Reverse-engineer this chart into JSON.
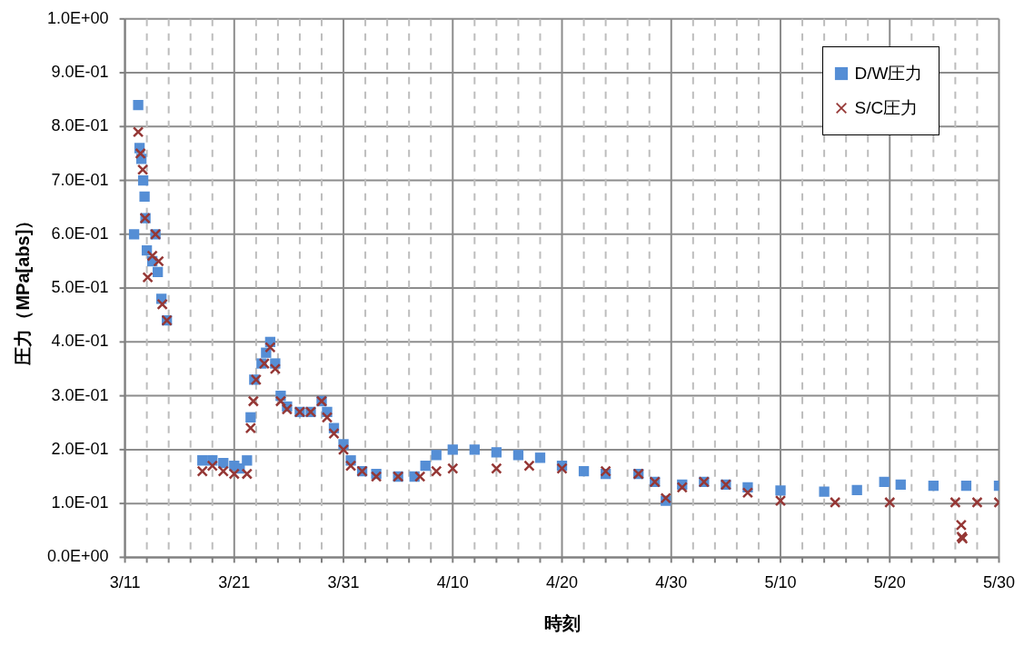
{
  "chart_data": {
    "type": "scatter",
    "xlabel": "時刻",
    "ylabel": "圧力（MPa[abs]）",
    "legend": "top right",
    "grid": true,
    "xlim": [
      "--03-11",
      "--05-30"
    ],
    "xticks": [
      {
        "value": "--03-11",
        "label": "3/11"
      },
      {
        "value": "--03-13",
        "label": null
      },
      {
        "value": "--03-15",
        "label": null
      },
      {
        "value": "--03-17",
        "label": null
      },
      {
        "value": "--03-19",
        "label": null
      },
      {
        "value": "--03-21",
        "label": "3/21"
      },
      {
        "value": "--03-23",
        "label": null
      },
      {
        "value": "--03-25",
        "label": null
      },
      {
        "value": "--03-27",
        "label": null
      },
      {
        "value": "--03-29",
        "label": null
      },
      {
        "value": "--03-31",
        "label": "3/31"
      },
      {
        "value": "--04-02",
        "label": null
      },
      {
        "value": "--04-04",
        "label": null
      },
      {
        "value": "--04-06",
        "label": null
      },
      {
        "value": "--04-08",
        "label": null
      },
      {
        "value": "--04-10",
        "label": "4/10"
      },
      {
        "value": "--04-12",
        "label": null
      },
      {
        "value": "--04-14",
        "label": null
      },
      {
        "value": "--04-16",
        "label": null
      },
      {
        "value": "--04-18",
        "label": null
      },
      {
        "value": "--04-20",
        "label": "4/20"
      },
      {
        "value": "--04-22",
        "label": null
      },
      {
        "value": "--04-24",
        "label": null
      },
      {
        "value": "--04-26",
        "label": null
      },
      {
        "value": "--04-28",
        "label": null
      },
      {
        "value": "--04-30",
        "label": "4/30"
      },
      {
        "value": "--05-02",
        "label": null
      },
      {
        "value": "--05-04",
        "label": null
      },
      {
        "value": "--05-06",
        "label": null
      },
      {
        "value": "--05-08",
        "label": null
      },
      {
        "value": "--05-10",
        "label": "5/10"
      },
      {
        "value": "--05-12",
        "label": null
      },
      {
        "value": "--05-14",
        "label": null
      },
      {
        "value": "--05-16",
        "label": null
      },
      {
        "value": "--05-18",
        "label": null
      },
      {
        "value": "--05-20",
        "label": "5/20"
      },
      {
        "value": "--05-22",
        "label": null
      },
      {
        "value": "--05-24",
        "label": null
      },
      {
        "value": "--05-26",
        "label": null
      },
      {
        "value": "--05-28",
        "label": null
      },
      {
        "value": "--05-30",
        "label": "5/30"
      }
    ],
    "ylim": [
      0,
      1
    ],
    "yticks": [
      {
        "value": 0,
        "label": "0.0E+00"
      },
      {
        "value": 0.1,
        "label": "1.0E-01"
      },
      {
        "value": 0.2,
        "label": "2.0E-01"
      },
      {
        "value": 0.3,
        "label": "3.0E-01"
      },
      {
        "value": 0.4,
        "label": "4.0E-01"
      },
      {
        "value": 0.5,
        "label": "5.0E-01"
      },
      {
        "value": 0.6,
        "label": "6.0E-01"
      },
      {
        "value": 0.7,
        "label": "7.0E-01"
      },
      {
        "value": 0.8,
        "label": "8.0E-01"
      },
      {
        "value": 0.9,
        "label": "9.0E-01"
      },
      {
        "value": 1,
        "label": "1.0E+00"
      }
    ],
    "series": [
      {
        "name": "D/W圧力",
        "color": "#558ed5",
        "marker": "square",
        "x": [
          "--03-11T20:00",
          "--03-12T05:00",
          "--03-12T08:00",
          "--03-12T12:00",
          "--03-12T16:00",
          "--03-12T19:00",
          "--03-12T21:00",
          "--03-13T00:00",
          "--03-13T12:00",
          "--03-13T19:00",
          "--03-14T00:00",
          "--03-14T08:00",
          "--03-14T20:00",
          "--03-18T02:00",
          "--03-19T00:00",
          "--03-20T00:00",
          "--03-21T00:00",
          "--03-21T12:00",
          "--03-22T04:00",
          "--03-22T12:00",
          "--03-22T20:00",
          "--03-23T12:00",
          "--03-23T22:00",
          "--03-24T07:00",
          "--03-24T18:00",
          "--03-25T06:00",
          "--03-25T20:00",
          "--03-27T00:00",
          "--03-28T00:00",
          "--03-29T00:00",
          "--03-29T12:00",
          "--03-30T03:00",
          "--03-31T00:00",
          "--03-31T16:00",
          "--04-01T17:00",
          "--04-03T00:00",
          "--04-05T00:00",
          "--04-06T12:00",
          "--04-07T12:00",
          "--04-08T12:00",
          "--04-10T00:00",
          "--04-12T00:00",
          "--04-14T00:00",
          "--04-16T00:00",
          "--04-18T00:00",
          "--04-20T00:00",
          "--04-22T00:00",
          "--04-24T00:00",
          "--04-27T00:00",
          "--04-28T12:00",
          "--04-29T12:00",
          "--05-01T00:00",
          "--05-03T00:00",
          "--05-05T00:00",
          "--05-07T00:00",
          "--05-10T00:00",
          "--05-14T00:00",
          "--05-17T00:00",
          "--05-19T12:00",
          "--05-21T00:00",
          "--05-24T00:00",
          "--05-27T00:00",
          "--05-30T00:00"
        ],
        "values": [
          0.6,
          0.84,
          0.76,
          0.74,
          0.7,
          0.67,
          0.63,
          0.57,
          0.55,
          0.6,
          0.53,
          0.48,
          0.44,
          0.18,
          0.18,
          0.175,
          0.17,
          0.165,
          0.18,
          0.26,
          0.33,
          0.36,
          0.38,
          0.4,
          0.36,
          0.3,
          0.28,
          0.27,
          0.27,
          0.29,
          0.27,
          0.24,
          0.21,
          0.18,
          0.16,
          0.155,
          0.15,
          0.15,
          0.17,
          0.19,
          0.2,
          0.2,
          0.195,
          0.19,
          0.185,
          0.17,
          0.16,
          0.155,
          0.155,
          0.14,
          0.105,
          0.135,
          0.14,
          0.135,
          0.13,
          0.124,
          0.122,
          0.125,
          0.14,
          0.135,
          0.133,
          0.133,
          0.133
        ]
      },
      {
        "name": "S/C圧力",
        "color": "#953735",
        "marker": "cross",
        "x": [
          "--03-12T05:00",
          "--03-12T10:00",
          "--03-12T15:00",
          "--03-12T20:00",
          "--03-13T02:00",
          "--03-13T12:00",
          "--03-13T19:00",
          "--03-14T02:00",
          "--03-14T10:00",
          "--03-14T20:00",
          "--03-18T02:00",
          "--03-19T00:00",
          "--03-20T00:00",
          "--03-21T00:00",
          "--03-22T04:00",
          "--03-22T12:00",
          "--03-22T18:00",
          "--03-23T00:00",
          "--03-23T18:00",
          "--03-24T07:00",
          "--03-24T18:00",
          "--03-25T06:00",
          "--03-25T20:00",
          "--03-27T00:00",
          "--03-28T00:00",
          "--03-29T00:00",
          "--03-29T12:00",
          "--03-30T03:00",
          "--03-31T00:00",
          "--03-31T16:00",
          "--04-01T17:00",
          "--04-03T00:00",
          "--04-05T00:00",
          "--04-07T00:00",
          "--04-08T12:00",
          "--04-10T00:00",
          "--04-14T00:00",
          "--04-17T00:00",
          "--04-20T00:00",
          "--04-24T00:00",
          "--04-27T00:00",
          "--04-28T12:00",
          "--04-29T12:00",
          "--05-01T00:00",
          "--05-03T00:00",
          "--05-05T00:00",
          "--05-07T00:00",
          "--05-10T00:00",
          "--05-15T00:00",
          "--05-20T00:00",
          "--05-26T00:00",
          "--05-26T13:00",
          "--05-26T14:00",
          "--05-26T16:00",
          "--05-28T00:00",
          "--05-30T00:00"
        ],
        "values": [
          0.79,
          0.75,
          0.72,
          0.63,
          0.52,
          0.56,
          0.6,
          0.55,
          0.47,
          0.44,
          0.16,
          0.17,
          0.16,
          0.155,
          0.155,
          0.24,
          0.29,
          0.33,
          0.36,
          0.39,
          0.35,
          0.29,
          0.275,
          0.27,
          0.27,
          0.29,
          0.26,
          0.23,
          0.2,
          0.17,
          0.16,
          0.15,
          0.15,
          0.15,
          0.16,
          0.165,
          0.165,
          0.17,
          0.165,
          0.16,
          0.155,
          0.14,
          0.11,
          0.13,
          0.14,
          0.135,
          0.12,
          0.105,
          0.102,
          0.102,
          0.102,
          0.06,
          0.038,
          0.035,
          0.102,
          0.102
        ]
      }
    ]
  }
}
